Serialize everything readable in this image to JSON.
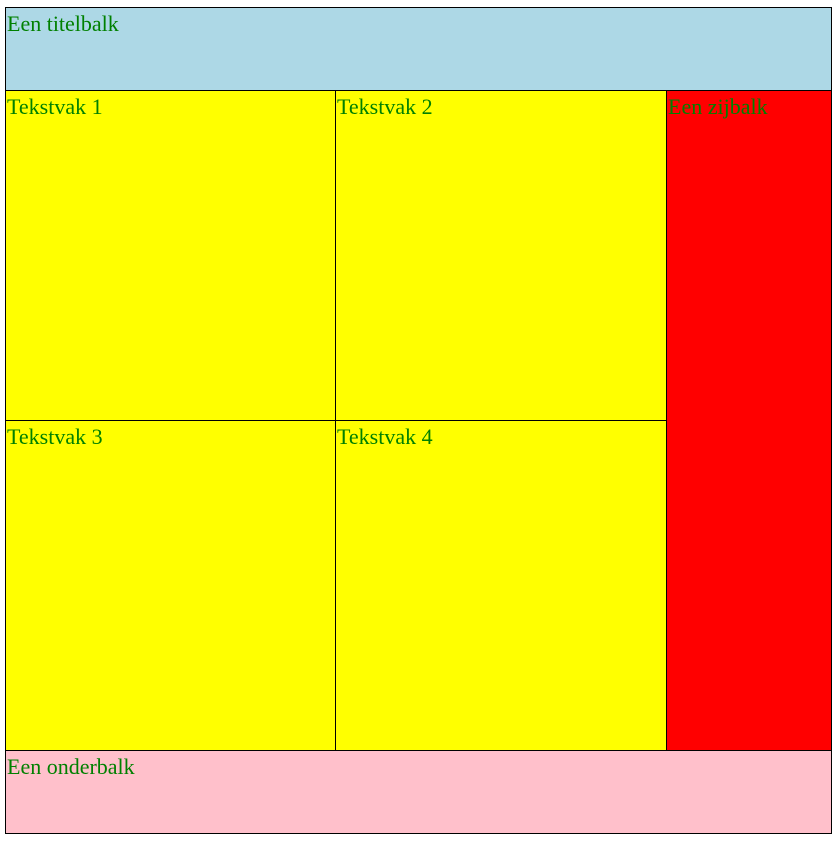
{
  "header": {
    "title": "Een titelbalk"
  },
  "main": {
    "boxes": [
      {
        "label": "Tekstvak 1"
      },
      {
        "label": "Tekstvak 2"
      },
      {
        "label": "Tekstvak 3"
      },
      {
        "label": "Tekstvak 4"
      }
    ]
  },
  "sidebar": {
    "label": "Een zijbalk"
  },
  "footer": {
    "label": "Een onderbalk"
  },
  "colors": {
    "text": "#008000",
    "header_bg": "#add8e6",
    "box_bg": "#ffff00",
    "sidebar_bg": "#ff0000",
    "footer_bg": "#ffc0cb",
    "border": "#000000"
  }
}
